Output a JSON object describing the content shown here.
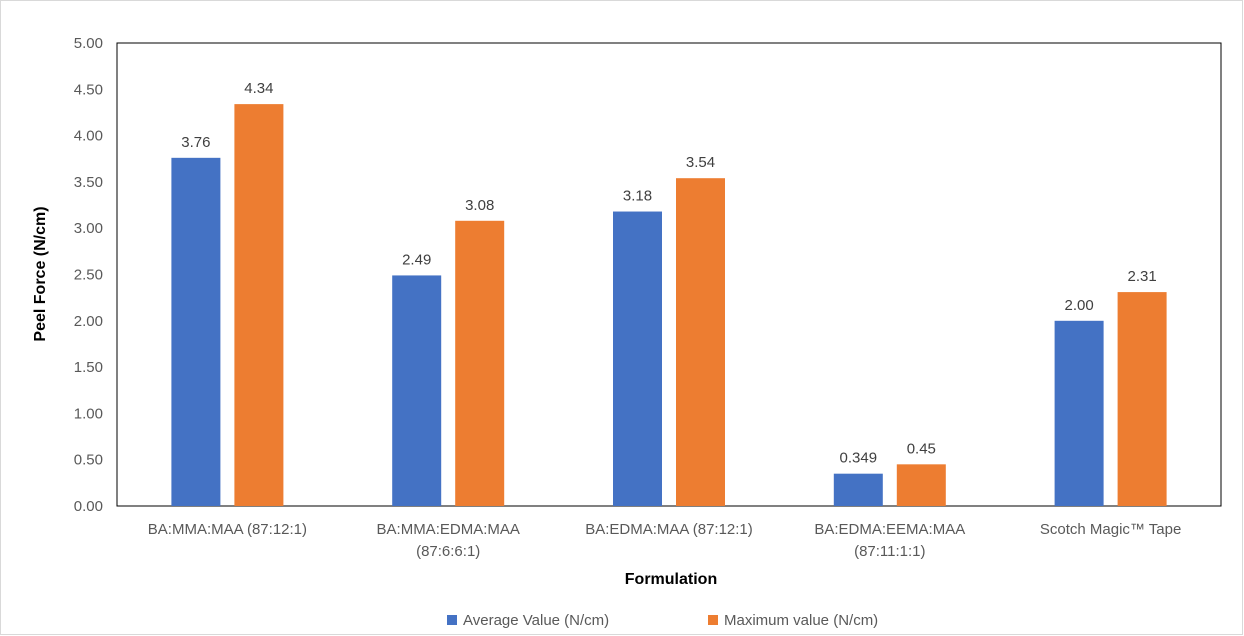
{
  "chart_data": {
    "type": "bar",
    "title": "",
    "xlabel": "Formulation",
    "ylabel": "Peel Force (N/cm)",
    "ylim": [
      0,
      5
    ],
    "y_ticks": [
      "0.00",
      "0.50",
      "1.00",
      "1.50",
      "2.00",
      "2.50",
      "3.00",
      "3.50",
      "4.00",
      "4.50",
      "5.00"
    ],
    "grid": false,
    "legend_position": "bottom",
    "categories": [
      [
        "BA:MMA:MAA (87:12:1)"
      ],
      [
        "BA:MMA:EDMA:MAA",
        "(87:6:6:1)"
      ],
      [
        "BA:EDMA:MAA (87:12:1)"
      ],
      [
        "BA:EDMA:EEMA:MAA",
        "(87:11:1:1)"
      ],
      [
        "Scotch Magic™ Tape"
      ]
    ],
    "series": [
      {
        "name": "Average Value (N/cm)",
        "color": "#4472C4",
        "values": [
          3.76,
          2.49,
          3.18,
          0.349,
          2.0
        ],
        "labels": [
          "3.76",
          "2.49",
          "3.18",
          "0.349",
          "2.00"
        ]
      },
      {
        "name": "Maximum value (N/cm)",
        "color": "#ED7D31",
        "values": [
          4.34,
          3.08,
          3.54,
          0.45,
          2.31
        ],
        "labels": [
          "4.34",
          "3.08",
          "3.54",
          "0.45",
          "2.31"
        ]
      }
    ]
  }
}
